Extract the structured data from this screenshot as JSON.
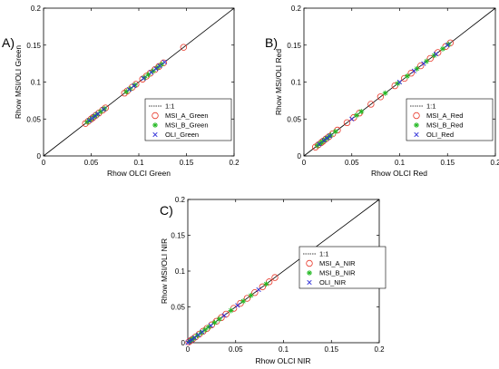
{
  "figure": {
    "panel_labels": [
      "A)",
      "B)",
      "C)"
    ]
  },
  "chart_data": [
    {
      "type": "scatter",
      "panel": "A)",
      "xlabel": "Rhow OLCI Green",
      "ylabel": "Rhow MSI/OLI Green",
      "xlim": [
        0,
        0.2
      ],
      "ylim": [
        0,
        0.2
      ],
      "xticks": [
        "0",
        "0.05",
        "0.1",
        "0.15",
        "0.2"
      ],
      "yticks": [
        "0",
        "0.05",
        "0.1",
        "0.15",
        "0.2"
      ],
      "reference_line": "1:1",
      "legend_position": "bottom-right",
      "series": [
        {
          "name": "MSI_A_Green",
          "marker": "circle",
          "color": "#e8392b",
          "x": [
            0.044,
            0.047,
            0.05,
            0.052,
            0.055,
            0.058,
            0.062,
            0.065,
            0.085,
            0.088,
            0.093,
            0.097,
            0.104,
            0.108,
            0.112,
            0.117,
            0.121,
            0.126,
            0.147
          ],
          "y": [
            0.044,
            0.047,
            0.05,
            0.052,
            0.055,
            0.058,
            0.062,
            0.065,
            0.085,
            0.088,
            0.093,
            0.097,
            0.104,
            0.108,
            0.112,
            0.117,
            0.121,
            0.126,
            0.147
          ]
        },
        {
          "name": "MSI_B_Green",
          "marker": "star",
          "color": "#22b822",
          "x": [
            0.046,
            0.049,
            0.053,
            0.056,
            0.06,
            0.064,
            0.087,
            0.091,
            0.096,
            0.106,
            0.11,
            0.115,
            0.12,
            0.124
          ],
          "y": [
            0.046,
            0.049,
            0.053,
            0.056,
            0.06,
            0.064,
            0.087,
            0.091,
            0.096,
            0.106,
            0.11,
            0.115,
            0.12,
            0.124
          ]
        },
        {
          "name": "OLI_Green",
          "marker": "x",
          "color": "#2b2bd8",
          "x": [
            0.048,
            0.051,
            0.054,
            0.057,
            0.063,
            0.09,
            0.095,
            0.105,
            0.113,
            0.118,
            0.122,
            0.127
          ],
          "y": [
            0.048,
            0.051,
            0.054,
            0.057,
            0.063,
            0.09,
            0.095,
            0.105,
            0.113,
            0.118,
            0.122,
            0.127
          ]
        }
      ]
    },
    {
      "type": "scatter",
      "panel": "B)",
      "xlabel": "Rhow OLCI Red",
      "ylabel": "Rhow MSI/OLI Red",
      "xlim": [
        0,
        0.2
      ],
      "ylim": [
        0,
        0.2
      ],
      "xticks": [
        "0",
        "0.05",
        "0.1",
        "0.15",
        "0.2"
      ],
      "yticks": [
        "0",
        "0.05",
        "0.1",
        "0.15",
        "0.2"
      ],
      "reference_line": "1:1",
      "legend_position": "bottom-right",
      "series": [
        {
          "name": "MSI_A_Red",
          "marker": "circle",
          "color": "#e8392b",
          "x": [
            0.012,
            0.015,
            0.018,
            0.02,
            0.023,
            0.026,
            0.03,
            0.035,
            0.045,
            0.052,
            0.058,
            0.07,
            0.08,
            0.095,
            0.105,
            0.112,
            0.122,
            0.132,
            0.14,
            0.148,
            0.153
          ],
          "y": [
            0.012,
            0.015,
            0.018,
            0.02,
            0.023,
            0.026,
            0.03,
            0.035,
            0.045,
            0.052,
            0.058,
            0.07,
            0.08,
            0.095,
            0.105,
            0.112,
            0.122,
            0.132,
            0.14,
            0.148,
            0.153
          ]
        },
        {
          "name": "MSI_B_Red",
          "marker": "star",
          "color": "#22b822",
          "x": [
            0.014,
            0.017,
            0.019,
            0.022,
            0.025,
            0.028,
            0.033,
            0.055,
            0.06,
            0.085,
            0.098,
            0.108,
            0.118,
            0.128,
            0.136,
            0.145,
            0.151
          ],
          "y": [
            0.014,
            0.017,
            0.019,
            0.022,
            0.025,
            0.028,
            0.033,
            0.055,
            0.06,
            0.085,
            0.098,
            0.108,
            0.118,
            0.128,
            0.136,
            0.145,
            0.151
          ]
        },
        {
          "name": "OLI_Red",
          "marker": "x",
          "color": "#2b2bd8",
          "x": [
            0.016,
            0.021,
            0.024,
            0.027,
            0.05,
            0.1,
            0.115,
            0.125,
            0.138,
            0.15
          ],
          "y": [
            0.016,
            0.021,
            0.024,
            0.027,
            0.05,
            0.1,
            0.115,
            0.125,
            0.138,
            0.15
          ]
        }
      ]
    },
    {
      "type": "scatter",
      "panel": "C)",
      "xlabel": "Rhow OLCI NIR",
      "ylabel": "Rhow MSI/OLI NIR",
      "xlim": [
        0,
        0.2
      ],
      "ylim": [
        0,
        0.2
      ],
      "xticks": [
        "0",
        "0.05",
        "0.1",
        "0.15",
        "0.2"
      ],
      "yticks": [
        "0",
        "0.05",
        "0.1",
        "0.15",
        "0.2"
      ],
      "reference_line": "1:1",
      "legend_position": "right",
      "series": [
        {
          "name": "MSI_A_NIR",
          "marker": "circle",
          "color": "#e8392b",
          "x": [
            0.001,
            0.003,
            0.005,
            0.008,
            0.012,
            0.016,
            0.02,
            0.025,
            0.03,
            0.035,
            0.04,
            0.048,
            0.055,
            0.062,
            0.07,
            0.078,
            0.085,
            0.091
          ],
          "y": [
            0.001,
            0.003,
            0.005,
            0.008,
            0.012,
            0.016,
            0.02,
            0.025,
            0.03,
            0.035,
            0.04,
            0.048,
            0.055,
            0.062,
            0.07,
            0.078,
            0.085,
            0.091
          ]
        },
        {
          "name": "MSI_B_NIR",
          "marker": "star",
          "color": "#22b822",
          "x": [
            0.002,
            0.004,
            0.006,
            0.01,
            0.014,
            0.018,
            0.022,
            0.028,
            0.033,
            0.045,
            0.058,
            0.066,
            0.082
          ],
          "y": [
            0.002,
            0.004,
            0.006,
            0.01,
            0.014,
            0.018,
            0.022,
            0.028,
            0.033,
            0.045,
            0.058,
            0.066,
            0.082
          ]
        },
        {
          "name": "OLI_NIR",
          "marker": "x",
          "color": "#2b2bd8",
          "x": [
            0.0,
            0.002,
            0.004,
            0.007,
            0.011,
            0.015,
            0.024,
            0.038,
            0.052,
            0.074
          ],
          "y": [
            0.0,
            0.002,
            0.004,
            0.007,
            0.011,
            0.015,
            0.024,
            0.038,
            0.052,
            0.074
          ]
        }
      ]
    }
  ]
}
